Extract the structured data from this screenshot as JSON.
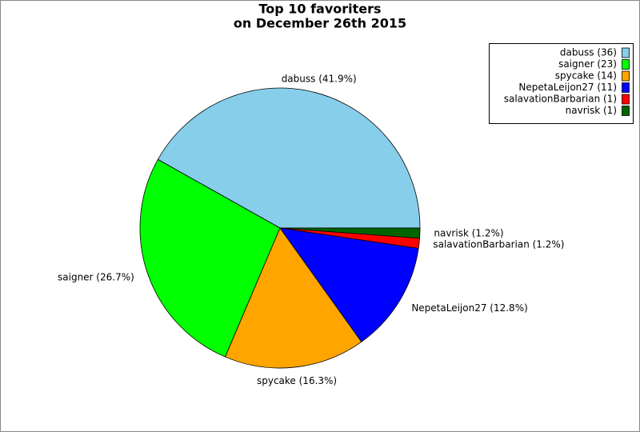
{
  "chart_data": {
    "type": "pie",
    "title": [
      "Top 10 favoriters",
      "on December 26th 2015"
    ],
    "categories": [
      "dabuss",
      "saigner",
      "spycake",
      "NepetaLeijon27",
      "salavationBarbarian",
      "navrisk"
    ],
    "values": [
      36,
      23,
      14,
      11,
      1,
      1
    ],
    "legend_labels": [
      "dabuss (36)",
      "saigner (23)",
      "spycake (14)",
      "NepetaLeijon27 (11)",
      "salavationBarbarian (1)",
      "navrisk (1)"
    ],
    "percentages": [
      41.9,
      26.7,
      16.3,
      12.8,
      1.2,
      1.2
    ],
    "percentage_labels": [
      "dabuss (41.9%)",
      "saigner (26.7%)",
      "spycake (16.3%)",
      "NepetaLeijon27 (12.8%)",
      "salavationBarbarian (1.2%)",
      "navrisk (1.2%)"
    ],
    "colors": [
      "#87ceeb",
      "#00ff00",
      "#ffa500",
      "#0000ff",
      "#ff0000",
      "#006400"
    ],
    "legend": "upper right"
  }
}
